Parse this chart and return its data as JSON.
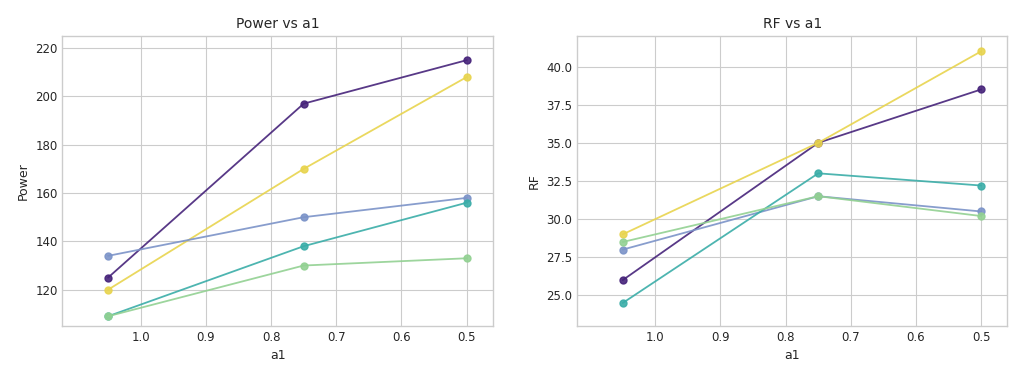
{
  "x": [
    1.05,
    0.75,
    0.5
  ],
  "power_series": [
    {
      "values": [
        125,
        197,
        215
      ],
      "color": "#46237a",
      "marker": "o"
    },
    {
      "values": [
        120,
        170,
        208
      ],
      "color": "#e8d44d",
      "marker": "o"
    },
    {
      "values": [
        134,
        150,
        158
      ],
      "color": "#7b93c8",
      "marker": "o"
    },
    {
      "values": [
        109,
        138,
        156
      ],
      "color": "#3aada8",
      "marker": "o"
    },
    {
      "values": [
        109,
        130,
        133
      ],
      "color": "#92d192",
      "marker": "o"
    }
  ],
  "rf_series": [
    {
      "values": [
        26.0,
        35.0,
        38.5
      ],
      "color": "#46237a",
      "marker": "o"
    },
    {
      "values": [
        29.0,
        35.0,
        41.0
      ],
      "color": "#e8d44d",
      "marker": "o"
    },
    {
      "values": [
        28.0,
        31.5,
        30.5
      ],
      "color": "#7b93c8",
      "marker": "o"
    },
    {
      "values": [
        24.5,
        33.0,
        32.2
      ],
      "color": "#3aada8",
      "marker": "o"
    },
    {
      "values": [
        28.5,
        31.5,
        30.2
      ],
      "color": "#92d192",
      "marker": "o"
    }
  ],
  "title_left": "Power vs a1",
  "title_right": "RF vs a1",
  "xlabel": "a1",
  "ylabel_left": "Power",
  "ylabel_right": "RF",
  "xticks": [
    1.0,
    0.9,
    0.8,
    0.7,
    0.6,
    0.5
  ],
  "xlim": [
    1.12,
    0.46
  ],
  "power_ylim": [
    105,
    225
  ],
  "rf_ylim": [
    23,
    42
  ],
  "bg_color": "#f0f0f0",
  "axes_bg": "#f0f0f0",
  "figure_bg": "#ffffff"
}
